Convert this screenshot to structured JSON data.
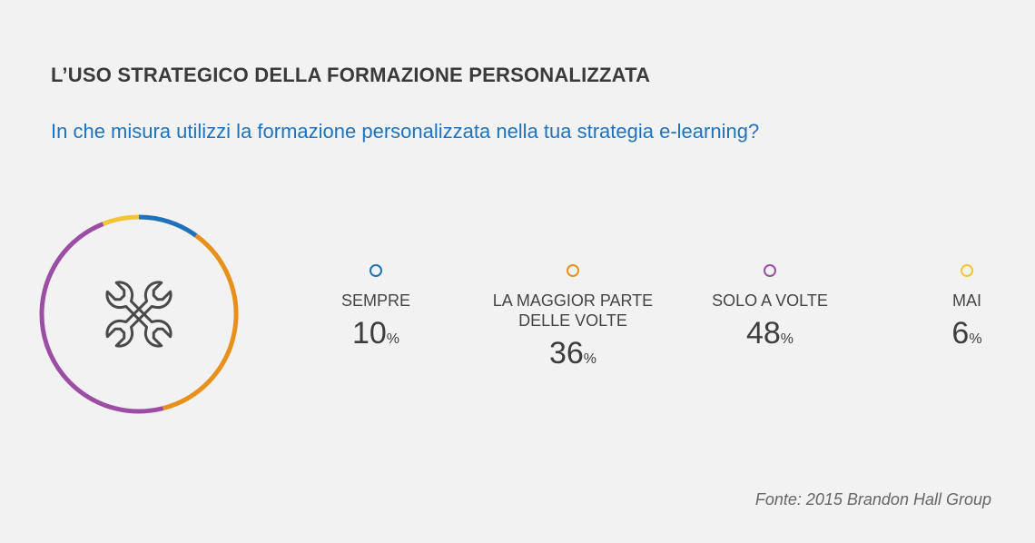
{
  "header": {
    "title": "L’USO STRATEGICO DELLA FORMAZIONE PERSONALIZZATA",
    "subtitle": "In che misura utilizzi la formazione personalizzata nella tua strategia e-learning?"
  },
  "center_icon": "crossed-wrenches-icon",
  "chart_data": {
    "type": "pie",
    "title": "L’USO STRATEGICO DELLA FORMAZIONE PERSONALIZZATA",
    "subtitle": "In che misura utilizzi la formazione personalizzata nella tua strategia e-learning?",
    "categories": [
      "SEMPRE",
      "LA MAGGIOR PARTE DELLE VOLTE",
      "SOLO A VOLTE",
      "MAI"
    ],
    "values": [
      10,
      36,
      48,
      6
    ],
    "value_labels": [
      "10",
      "36",
      "48",
      "6"
    ],
    "unit": "%",
    "colors": [
      "#1f72b8",
      "#e8901c",
      "#9b4ea3",
      "#f3c533"
    ],
    "legend_position": "right"
  },
  "source": "Fonte: 2015 Brandon Hall Group"
}
